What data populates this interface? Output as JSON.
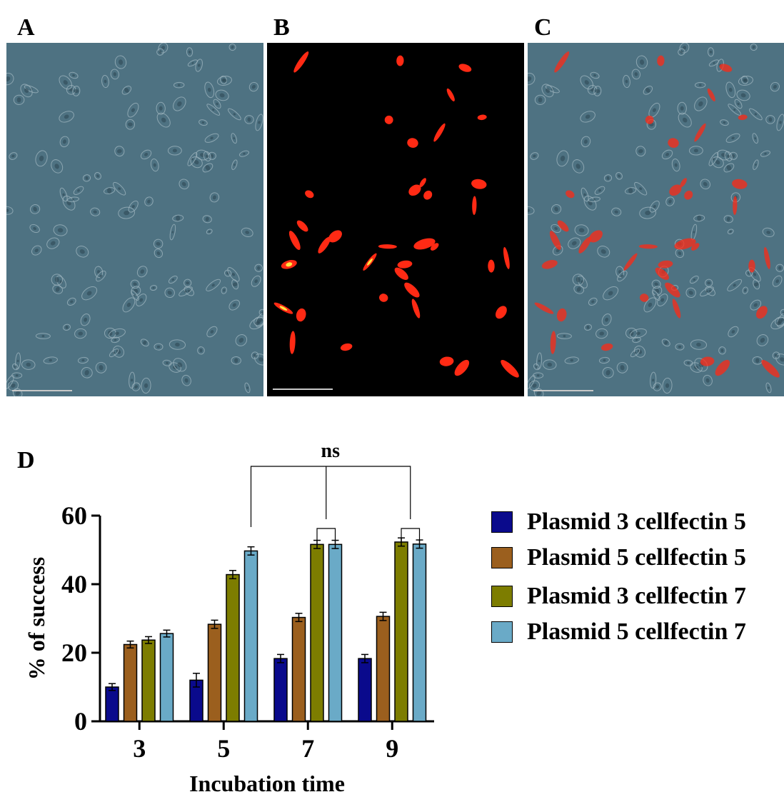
{
  "panels": {
    "a": {
      "label": "A"
    },
    "b": {
      "label": "B"
    },
    "c": {
      "label": "C"
    },
    "d": {
      "label": "D"
    }
  },
  "colors": {
    "brightfield_bg": "#4e7282",
    "fluorescence_bg": "#000000",
    "cell_fluorescence": "#ff2a14",
    "cell_hotspot": "#ffe640",
    "scale_bar": "#c8c8c8"
  },
  "chart_data": {
    "type": "bar",
    "categories": [
      "3",
      "5",
      "7",
      "9"
    ],
    "series": [
      {
        "name": "Plasmid 3 cellfectin 5",
        "color": "#0a0a8c",
        "values": [
          10,
          12,
          18.3,
          18.3
        ],
        "errors": [
          1,
          2,
          1.2,
          1.2
        ]
      },
      {
        "name": "Plasmid 5 cellfectin 5",
        "color": "#9b5f1e",
        "values": [
          22.4,
          28.3,
          30.3,
          30.6
        ],
        "errors": [
          1,
          1.2,
          1.2,
          1.2
        ]
      },
      {
        "name": "Plasmid 3 cellfectin 7",
        "color": "#7d7d00",
        "values": [
          23.7,
          42.8,
          51.6,
          52.3
        ],
        "errors": [
          1,
          1.2,
          1.2,
          1.2
        ]
      },
      {
        "name": "Plasmid 5 cellfectin 7",
        "color": "#6aaac7",
        "values": [
          25.6,
          49.7,
          51.6,
          51.7
        ],
        "errors": [
          1,
          1.2,
          1.2,
          1.2
        ]
      }
    ],
    "xlabel": "Incubation time",
    "ylabel": "% of success",
    "ylim": [
      0,
      60
    ],
    "yticks": [
      0,
      20,
      40,
      60
    ],
    "annotations": [
      {
        "text": "ns",
        "type": "significance-bracket",
        "compares": "5 vs 7 vs 9"
      }
    ],
    "legend_placement": "right",
    "grid": false
  }
}
